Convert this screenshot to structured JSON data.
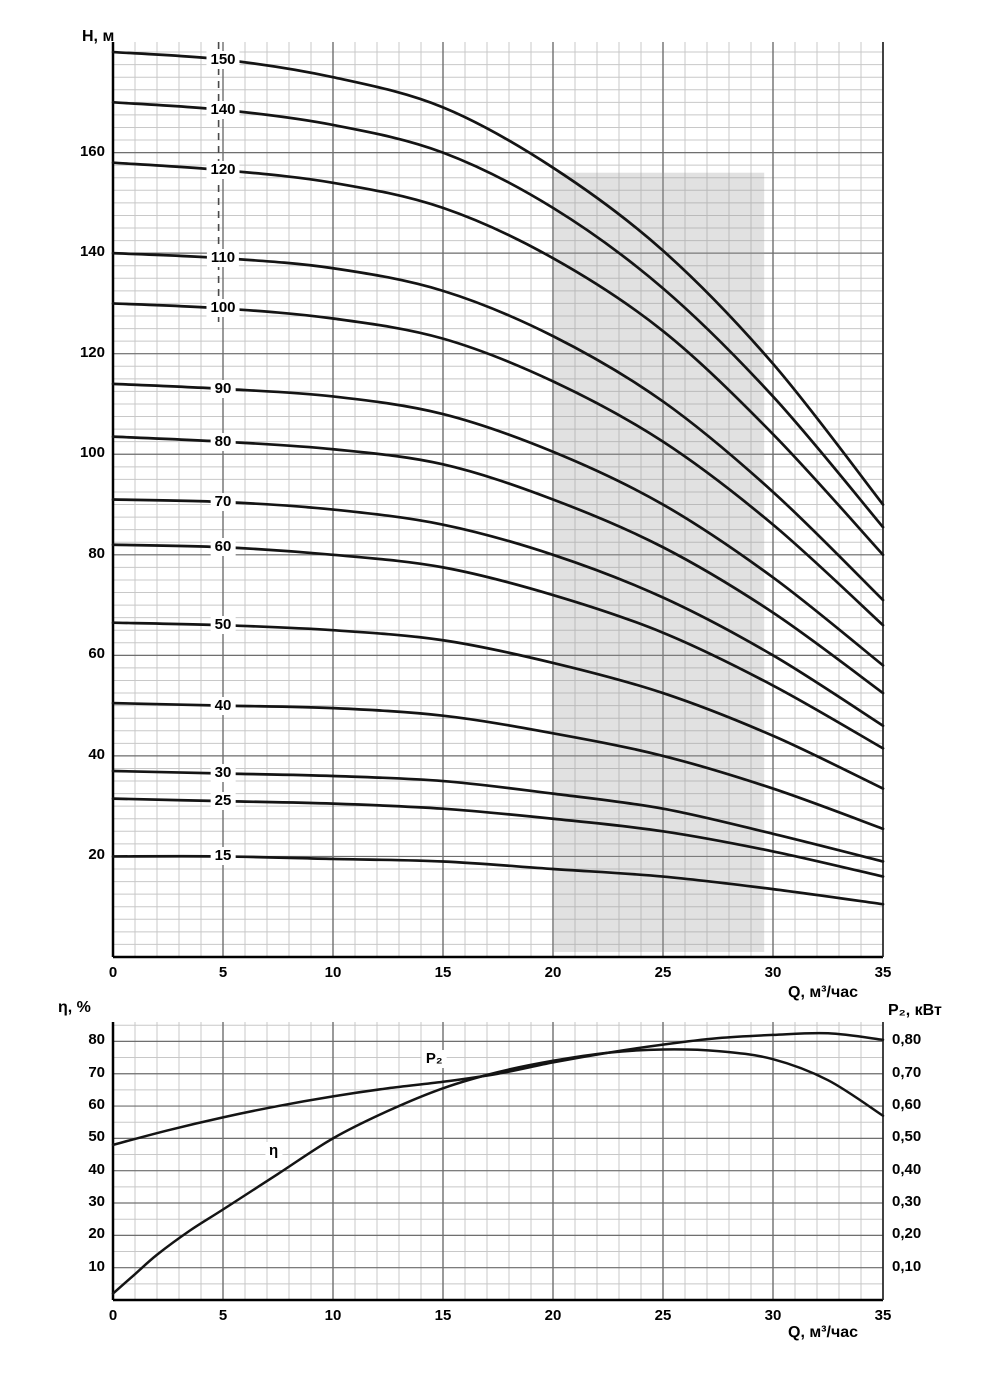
{
  "style": {
    "background": "#ffffff",
    "curve_color": "#141414",
    "minor_grid_color": "#c8c8c8",
    "major_grid_color": "#6f6f6f",
    "axis_color": "#000000",
    "right_axis_color": "#222222",
    "shade_color": "#9a9a9a",
    "shade_opacity": 0.3,
    "guide_color": "#4a4a4a",
    "text_color": "#000000"
  },
  "chart_data": [
    {
      "id": "head-capacity",
      "type": "line",
      "title": "",
      "xlabel": "Q, м³/час",
      "ylabel": "Н, м",
      "xlim": [
        0,
        35
      ],
      "ylim": [
        0,
        182
      ],
      "x_ticks": [
        0,
        5,
        10,
        15,
        20,
        25,
        30,
        35
      ],
      "y_ticks": [
        20,
        40,
        60,
        80,
        100,
        120,
        140,
        160
      ],
      "minor_grid": {
        "x_step": 1,
        "y_step": 2.5
      },
      "grid": true,
      "legend": "none",
      "line_width": 2.7,
      "series_label_x": 5,
      "shaded_region": {
        "x": [
          20,
          29.6
        ],
        "y": [
          1,
          156
        ]
      },
      "dashed_guide": {
        "x": 4.8,
        "y": [
          126,
          182
        ]
      },
      "x": [
        0,
        5,
        10,
        15,
        20,
        25,
        30,
        35
      ],
      "series": [
        {
          "name": "150",
          "values": [
            180,
            178.5,
            175,
            169,
            157,
            140.5,
            118,
            90
          ]
        },
        {
          "name": "140",
          "values": [
            170,
            168.5,
            165.5,
            160,
            149,
            133,
            111.5,
            85.5
          ]
        },
        {
          "name": "120",
          "values": [
            158,
            156.5,
            154,
            149,
            139,
            124.5,
            104,
            80
          ]
        },
        {
          "name": "110",
          "values": [
            140,
            139,
            137,
            132.5,
            123.5,
            110.5,
            92.5,
            71
          ]
        },
        {
          "name": "100",
          "values": [
            130,
            129,
            127,
            123,
            114.5,
            102.5,
            86,
            66
          ]
        },
        {
          "name": "90",
          "values": [
            114,
            113,
            111.5,
            108,
            100.5,
            90,
            75.5,
            58
          ]
        },
        {
          "name": "80",
          "values": [
            103.5,
            102.5,
            101,
            98,
            91,
            81.5,
            68.5,
            52.5
          ]
        },
        {
          "name": "70",
          "values": [
            91,
            90.5,
            89,
            86,
            80,
            71.5,
            60,
            46
          ]
        },
        {
          "name": "60",
          "values": [
            82,
            81.5,
            80,
            77.5,
            72,
            64.5,
            54,
            41.5
          ]
        },
        {
          "name": "50",
          "values": [
            66.5,
            66,
            65,
            63,
            58.5,
            52.5,
            44,
            33.5
          ]
        },
        {
          "name": "40",
          "values": [
            50.5,
            50,
            49.5,
            48,
            44.5,
            40,
            33.5,
            25.5
          ]
        },
        {
          "name": "30",
          "values": [
            37,
            36.5,
            36,
            35,
            32.5,
            29.5,
            24.5,
            19
          ]
        },
        {
          "name": "25",
          "values": [
            31.5,
            31,
            30.5,
            29.5,
            27.5,
            25,
            21,
            16
          ]
        },
        {
          "name": "15",
          "values": [
            20,
            20,
            19.5,
            19,
            17.5,
            16,
            13.5,
            10.5
          ]
        }
      ]
    },
    {
      "id": "efficiency-power",
      "type": "line",
      "title": "",
      "xlabel": "Q, м³/час",
      "ylabel": "η, %",
      "y2label": "P₂, кВт",
      "xlim": [
        0,
        35
      ],
      "ylim": [
        0,
        86
      ],
      "y2_scale": 100,
      "x_ticks": [
        0,
        5,
        10,
        15,
        20,
        25,
        30,
        35
      ],
      "y_ticks": [
        10,
        20,
        30,
        40,
        50,
        60,
        70,
        80
      ],
      "y2_ticks": [
        {
          "label": "0,10",
          "value": 0.1
        },
        {
          "label": "0,20",
          "value": 0.2
        },
        {
          "label": "0,30",
          "value": 0.3
        },
        {
          "label": "0,40",
          "value": 0.4
        },
        {
          "label": "0,50",
          "value": 0.5
        },
        {
          "label": "0,60",
          "value": 0.6
        },
        {
          "label": "0,70",
          "value": 0.7
        },
        {
          "label": "0,80",
          "value": 0.8
        }
      ],
      "minor_grid": {
        "x_step": 1,
        "y_step": 5
      },
      "grid": true,
      "legend": "none",
      "line_width": 2.5,
      "series": [
        {
          "name": "η",
          "axis": "left",
          "x": [
            0,
            1,
            2,
            3.5,
            5,
            7.5,
            10,
            12.5,
            15,
            17.5,
            20,
            22.5,
            25,
            27.5,
            30,
            32.5,
            35
          ],
          "values": [
            2,
            8,
            14,
            21.5,
            28,
            39,
            50,
            58.5,
            65.5,
            70.5,
            74,
            76.5,
            77.5,
            77,
            74.5,
            68,
            57
          ],
          "label_pos": {
            "x": 7.3,
            "y": 46
          }
        },
        {
          "name": "P₂",
          "axis": "right",
          "x": [
            0,
            2.5,
            5,
            7.5,
            10,
            12.5,
            15,
            17.5,
            20,
            22.5,
            25,
            27.5,
            30,
            32.5,
            35
          ],
          "values": [
            0.48,
            0.525,
            0.565,
            0.6,
            0.63,
            0.655,
            0.675,
            0.7,
            0.735,
            0.765,
            0.79,
            0.81,
            0.82,
            0.825,
            0.805
          ],
          "label_pos": {
            "x": 14.6,
            "y": 0.745
          }
        }
      ]
    }
  ]
}
